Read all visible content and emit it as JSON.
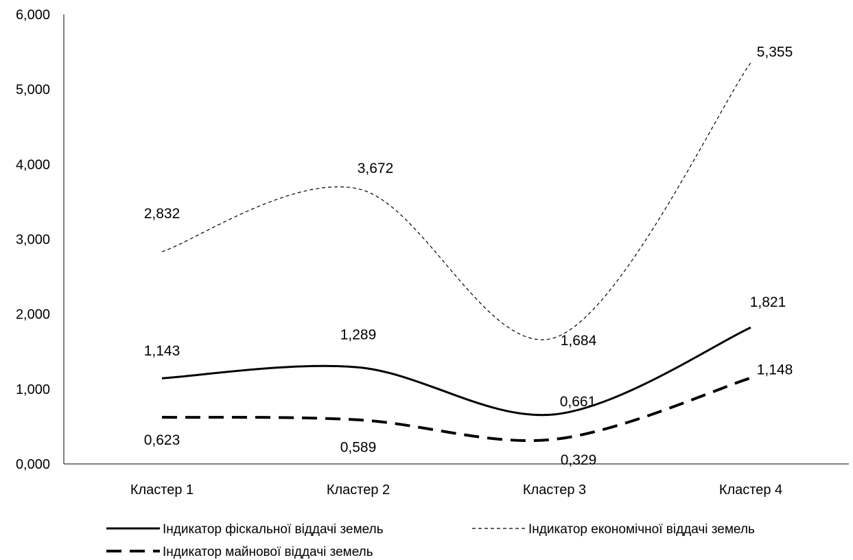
{
  "chart_data": {
    "type": "line",
    "smooth": true,
    "categories": [
      "Кластер 1",
      "Кластер 2",
      "Кластер 3",
      "Кластер 4"
    ],
    "ylim": [
      0,
      6
    ],
    "yticks": [
      "0,000",
      "1,000",
      "2,000",
      "3,000",
      "4,000",
      "5,000",
      "6,000"
    ],
    "grid": false,
    "legend_position": "bottom",
    "series": [
      {
        "name": "Індикатор фіскальної віддачі земель",
        "values": [
          1.143,
          1.289,
          0.661,
          1.821
        ],
        "labels": [
          "1,143",
          "1,289",
          "0,661",
          "1,821"
        ],
        "style": "solid",
        "color": "#000000"
      },
      {
        "name": "Індикатор економічної віддачі земель",
        "values": [
          2.832,
          3.672,
          1.684,
          5.355
        ],
        "labels": [
          "2,832",
          "3,672",
          "1,684",
          "5,355"
        ],
        "style": "dashed-thin",
        "color": "#000000"
      },
      {
        "name": "Індикатор майнової віддачі земель",
        "values": [
          0.623,
          0.589,
          0.329,
          1.148
        ],
        "labels": [
          "0,623",
          "0,589",
          "0,329",
          "1,148"
        ],
        "style": "dashed-thick",
        "color": "#000000"
      }
    ]
  }
}
